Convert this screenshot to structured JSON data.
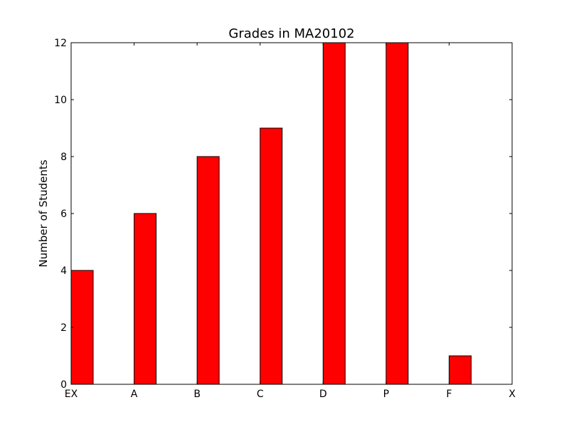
{
  "chart_data": {
    "type": "bar",
    "title": "Grades in MA20102",
    "xlabel": "",
    "ylabel": "Number of Students",
    "categories": [
      "EX",
      "A",
      "B",
      "C",
      "D",
      "P",
      "F",
      "X"
    ],
    "values": [
      4,
      6,
      8,
      9,
      12,
      12,
      1,
      0
    ],
    "ylim": [
      0,
      12
    ],
    "yticks": [
      "0",
      "2",
      "4",
      "6",
      "8",
      "10",
      "12"
    ],
    "bar_color": "#ff0000",
    "grid": false,
    "legend": "none"
  }
}
